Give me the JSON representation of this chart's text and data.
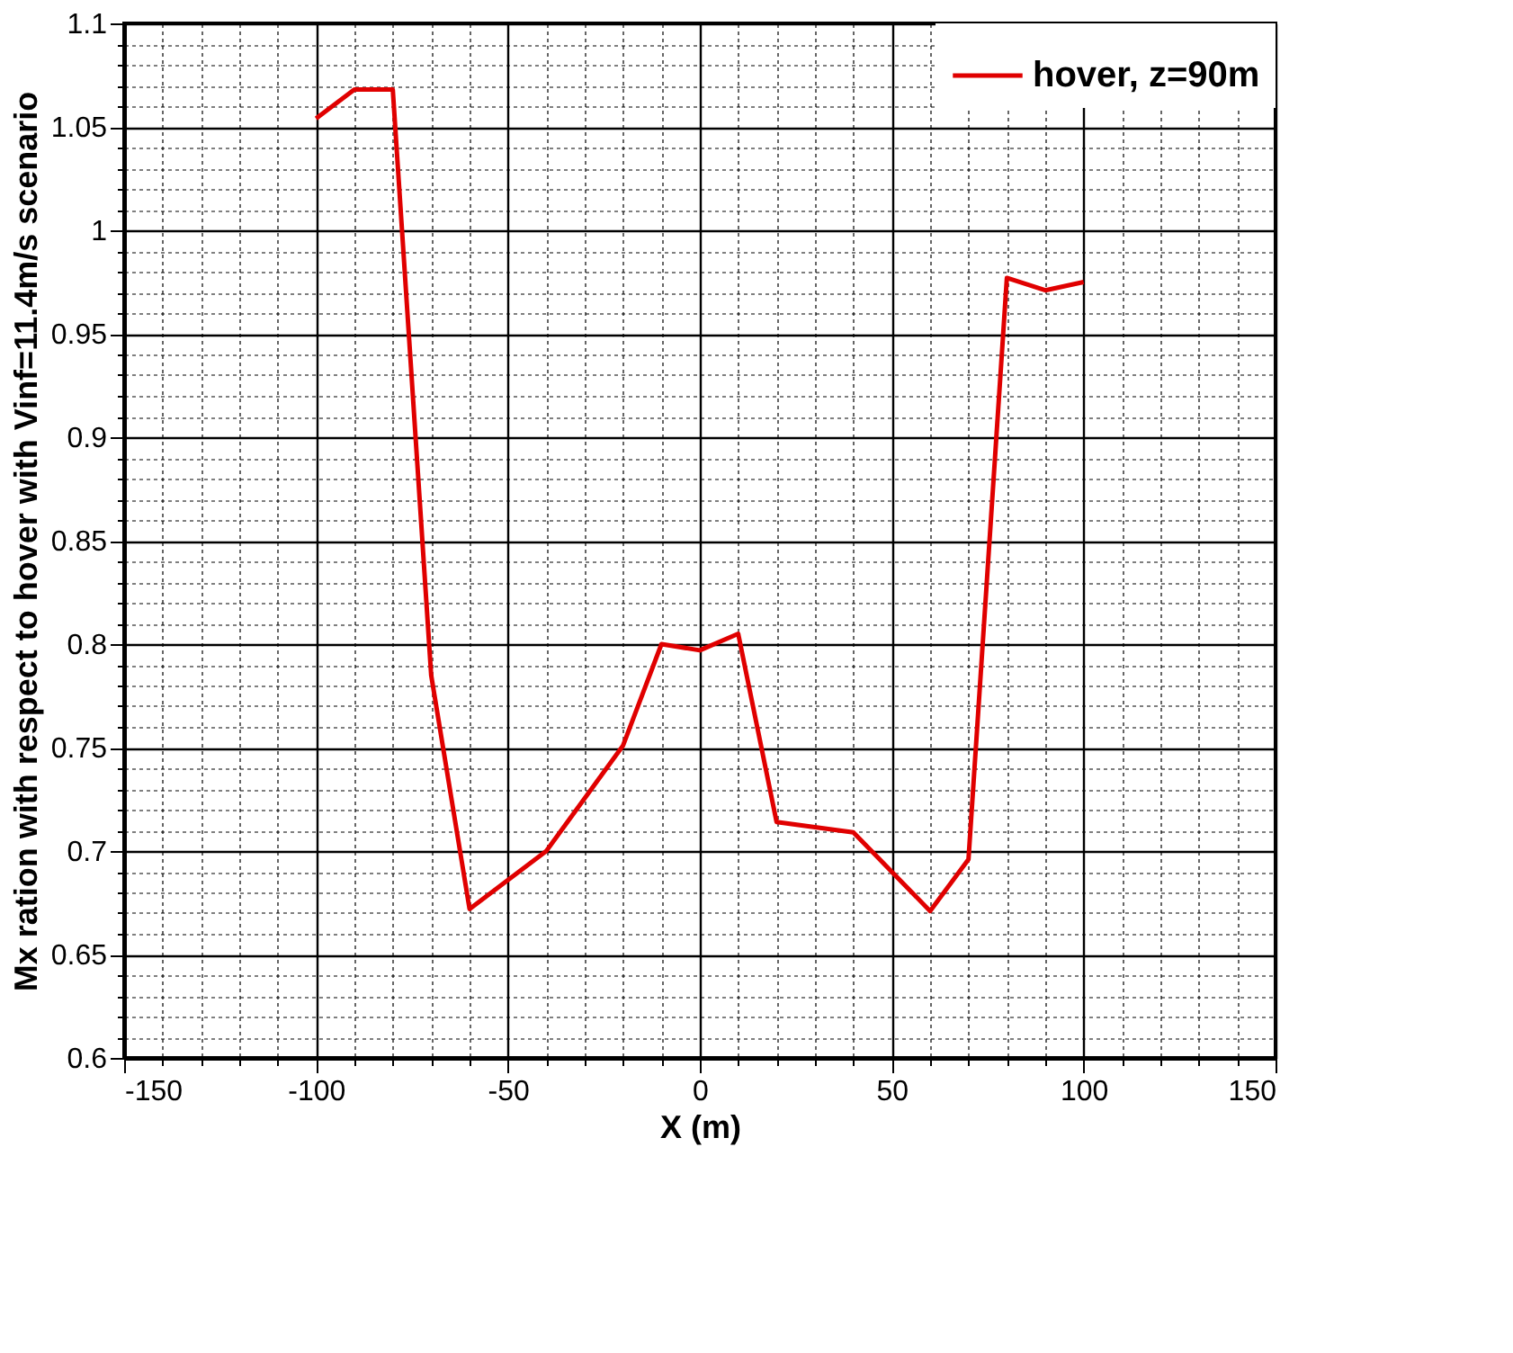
{
  "chart_data": {
    "type": "line",
    "xlabel": "X (m)",
    "ylabel": "Mx ration with respect to hover with Vinf=11.4m/s scenario",
    "x": [
      -100,
      -90,
      -80,
      -70,
      -60,
      -40,
      -20,
      -10,
      0,
      10,
      20,
      40,
      60,
      70,
      80,
      90,
      100
    ],
    "series": [
      {
        "name": "hover, z=90m",
        "color": "#e00000",
        "values": [
          1.054,
          1.068,
          1.068,
          0.785,
          0.672,
          0.7,
          0.751,
          0.8,
          0.797,
          0.805,
          0.714,
          0.709,
          0.671,
          0.696,
          0.977,
          0.971,
          0.975
        ]
      }
    ],
    "xlim": [
      -150,
      150
    ],
    "ylim": [
      0.6,
      1.1
    ],
    "xticks": [
      -150,
      {
        "value": -140,
        "label": null
      },
      {
        "value": -130,
        "label": null
      },
      {
        "value": -120,
        "label": null
      },
      {
        "value": -110,
        "label": null
      },
      -100,
      {
        "value": -90,
        "label": null
      },
      {
        "value": -80,
        "label": null
      },
      {
        "value": -70,
        "label": null
      },
      {
        "value": -60,
        "label": null
      },
      -50,
      {
        "value": -40,
        "label": null
      },
      {
        "value": -30,
        "label": null
      },
      {
        "value": -20,
        "label": null
      },
      {
        "value": -10,
        "label": null
      },
      0,
      {
        "value": 10,
        "label": null
      },
      {
        "value": 20,
        "label": null
      },
      {
        "value": 30,
        "label": null
      },
      {
        "value": 40,
        "label": null
      },
      50,
      {
        "value": 60,
        "label": null
      },
      {
        "value": 70,
        "label": null
      },
      {
        "value": 80,
        "label": null
      },
      {
        "value": 90,
        "label": null
      },
      100,
      {
        "value": 110,
        "label": null
      },
      {
        "value": 120,
        "label": null
      },
      {
        "value": 130,
        "label": null
      },
      {
        "value": 140,
        "label": null
      },
      150
    ],
    "yticks": [
      0.6,
      {
        "value": 0.61,
        "label": null
      },
      {
        "value": 0.62,
        "label": null
      },
      {
        "value": 0.63,
        "label": null
      },
      {
        "value": 0.64,
        "label": null
      },
      0.65,
      {
        "value": 0.66,
        "label": null
      },
      {
        "value": 0.67,
        "label": null
      },
      {
        "value": 0.68,
        "label": null
      },
      {
        "value": 0.69,
        "label": null
      },
      0.7,
      {
        "value": 0.71,
        "label": null
      },
      {
        "value": 0.72,
        "label": null
      },
      {
        "value": 0.73,
        "label": null
      },
      {
        "value": 0.74,
        "label": null
      },
      0.75,
      {
        "value": 0.76,
        "label": null
      },
      {
        "value": 0.77,
        "label": null
      },
      {
        "value": 0.78,
        "label": null
      },
      {
        "value": 0.79,
        "label": null
      },
      0.8,
      {
        "value": 0.81,
        "label": null
      },
      {
        "value": 0.82,
        "label": null
      },
      {
        "value": 0.83,
        "label": null
      },
      {
        "value": 0.84,
        "label": null
      },
      0.85,
      {
        "value": 0.86,
        "label": null
      },
      {
        "value": 0.87,
        "label": null
      },
      {
        "value": 0.88,
        "label": null
      },
      {
        "value": 0.89,
        "label": null
      },
      0.9,
      {
        "value": 0.91,
        "label": null
      },
      {
        "value": 0.92,
        "label": null
      },
      {
        "value": 0.93,
        "label": null
      },
      {
        "value": 0.94,
        "label": null
      },
      0.95,
      {
        "value": 0.96,
        "label": null
      },
      {
        "value": 0.97,
        "label": null
      },
      {
        "value": 0.98,
        "label": null
      },
      {
        "value": 0.99,
        "label": null
      },
      1,
      {
        "value": 1.01,
        "label": null
      },
      {
        "value": 1.02,
        "label": null
      },
      {
        "value": 1.03,
        "label": null
      },
      {
        "value": 1.04,
        "label": null
      },
      1.05,
      {
        "value": 1.06,
        "label": null
      },
      {
        "value": 1.07,
        "label": null
      },
      {
        "value": 1.08,
        "label": null
      },
      {
        "value": 1.09,
        "label": null
      },
      1.1
    ],
    "grid": true,
    "legend": "top right",
    "marker": "none",
    "line_style": "solid"
  }
}
